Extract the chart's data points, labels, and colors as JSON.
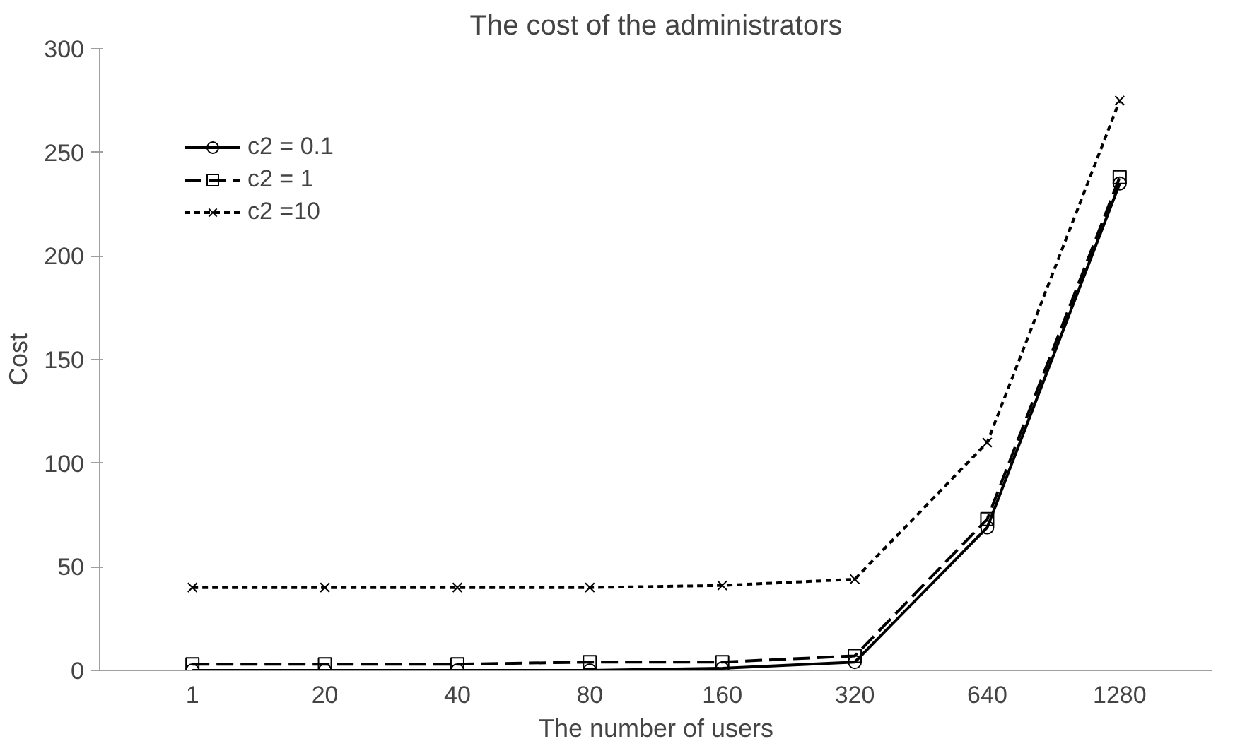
{
  "chart_data": {
    "type": "line",
    "title": "The cost of the administrators",
    "xlabel": "The number of users",
    "ylabel": "Cost",
    "categories": [
      "1",
      "20",
      "40",
      "80",
      "160",
      "320",
      "640",
      "1280"
    ],
    "series": [
      {
        "name": "c2 = 0.1",
        "color": "#000000",
        "marker": "circle",
        "line_style": "solid",
        "values": [
          0,
          0,
          0,
          0,
          1,
          4,
          69,
          235
        ]
      },
      {
        "name": "c2 = 1",
        "color": "#000000",
        "marker": "square",
        "line_style": "dashed",
        "values": [
          3,
          3,
          3,
          4,
          4,
          7,
          73,
          238
        ]
      },
      {
        "name": "c2 =10",
        "color": "#000000",
        "marker": "cross",
        "line_style": "dotted",
        "values": [
          40,
          40,
          40,
          40,
          41,
          44,
          110,
          275
        ]
      }
    ],
    "ylim": [
      0,
      300
    ],
    "yticks": [
      0,
      50,
      100,
      150,
      200,
      250,
      300
    ],
    "grid": false,
    "legend": "top left"
  }
}
